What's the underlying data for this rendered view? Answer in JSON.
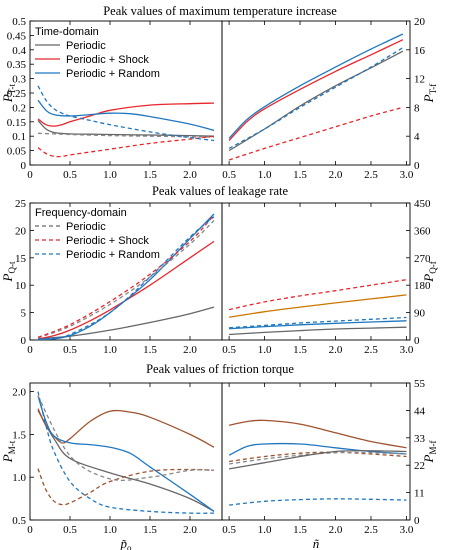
{
  "chart_data": [
    {
      "type": "line",
      "title": "Peak values of maximum temperature increase",
      "legend": {
        "title": "Time-domain",
        "entries": [
          "Periodic",
          "Periodic + Shock",
          "Periodic + Random"
        ],
        "placement": "top-left"
      },
      "left": {
        "ylabel": "P",
        "ysub": "T-t",
        "xlim": [
          0,
          2.4
        ],
        "ylim": [
          0,
          0.5
        ],
        "xticks": [
          "0",
          "0.5",
          "1.0",
          "1.5",
          "2.0"
        ],
        "yticks": [
          "0",
          "0.05",
          "0.1",
          "0.15",
          "0.2",
          "0.25",
          "0.3",
          "0.35",
          "0.4",
          "0.45",
          "0.5"
        ],
        "series": [
          {
            "color": "#666666",
            "dash": false,
            "x": [
              0.1,
              0.2,
              0.3,
              0.5,
              0.75,
              1.0,
              1.5,
              2.0,
              2.3
            ],
            "y": [
              0.155,
              0.125,
              0.113,
              0.108,
              0.107,
              0.106,
              0.104,
              0.102,
              0.1
            ]
          },
          {
            "color": "#e8262c",
            "dash": false,
            "x": [
              0.1,
              0.2,
              0.3,
              0.4,
              0.5,
              0.75,
              1.0,
              1.5,
              2.0,
              2.3
            ],
            "y": [
              0.16,
              0.14,
              0.135,
              0.14,
              0.15,
              0.17,
              0.19,
              0.208,
              0.213,
              0.215
            ]
          },
          {
            "color": "#1f77c0",
            "dash": false,
            "x": [
              0.1,
              0.2,
              0.3,
              0.5,
              0.75,
              1.0,
              1.25,
              1.5,
              2.0,
              2.3
            ],
            "y": [
              0.225,
              0.19,
              0.175,
              0.17,
              0.175,
              0.18,
              0.178,
              0.168,
              0.142,
              0.12
            ]
          },
          {
            "color": "#888888",
            "dash": true,
            "x": [
              0.1,
              0.3,
              0.5,
              1.0,
              1.5,
              2.0,
              2.3
            ],
            "y": [
              0.11,
              0.108,
              0.106,
              0.102,
              0.1,
              0.098,
              0.097
            ]
          },
          {
            "color": "#e8262c",
            "dash": true,
            "x": [
              0.1,
              0.2,
              0.3,
              0.4,
              0.5,
              0.75,
              1.0,
              1.5,
              2.0,
              2.3
            ],
            "y": [
              0.06,
              0.04,
              0.03,
              0.03,
              0.035,
              0.045,
              0.055,
              0.075,
              0.09,
              0.1
            ]
          },
          {
            "color": "#1f77c0",
            "dash": true,
            "x": [
              0.1,
              0.2,
              0.3,
              0.4,
              0.5,
              0.75,
              1.0,
              1.5,
              2.0,
              2.3
            ],
            "y": [
              0.275,
              0.225,
              0.195,
              0.18,
              0.17,
              0.155,
              0.14,
              0.115,
              0.095,
              0.085
            ]
          }
        ]
      },
      "right": {
        "ylabel": "P",
        "ysub": "T-f",
        "xlim": [
          0.4,
          3.05
        ],
        "ylim": [
          0,
          20
        ],
        "xticks": [
          "0.5",
          "1.0",
          "1.5",
          "2.0",
          "2.5",
          "3.0"
        ],
        "yticks": [
          "0",
          "4",
          "8",
          "12",
          "16",
          "20"
        ],
        "series": [
          {
            "color": "#e8262c",
            "dash": false,
            "x": [
              0.5,
              0.75,
              1.0,
              1.5,
              2.0,
              2.5,
              2.95
            ],
            "y": [
              3.4,
              6.0,
              7.8,
              10.5,
              13.0,
              15.3,
              17.4
            ]
          },
          {
            "color": "#1f77c0",
            "dash": false,
            "x": [
              0.5,
              0.75,
              1.0,
              1.5,
              2.0,
              2.5,
              2.95
            ],
            "y": [
              3.7,
              6.3,
              8.1,
              11.0,
              13.6,
              16.1,
              18.2
            ]
          },
          {
            "color": "#666666",
            "dash": false,
            "x": [
              0.5,
              1.0,
              1.5,
              2.0,
              2.5,
              2.95
            ],
            "y": [
              2.0,
              5.0,
              8.2,
              11.0,
              13.5,
              15.8
            ]
          },
          {
            "color": "#1f77c0",
            "dash": true,
            "x": [
              0.5,
              1.0,
              1.5,
              2.0,
              2.5,
              2.95
            ],
            "y": [
              2.3,
              5.0,
              8.0,
              10.8,
              13.6,
              16.3
            ]
          },
          {
            "color": "#e8262c",
            "dash": true,
            "x": [
              0.5,
              1.0,
              1.5,
              2.0,
              2.5,
              2.95
            ],
            "y": [
              0.7,
              2.3,
              3.8,
              5.3,
              6.8,
              8.0
            ]
          }
        ]
      }
    },
    {
      "type": "line",
      "title": "Peak values  of leakage rate",
      "legend": {
        "title": "Frequency-domain",
        "entries": [
          "Periodic",
          "Periodic + Shock",
          "Periodic + Random"
        ],
        "placement": "top-left"
      },
      "left": {
        "ylabel": "P",
        "ysub": "Q-t",
        "xlim": [
          0,
          2.4
        ],
        "ylim": [
          0,
          25
        ],
        "xticks": [
          "0",
          "0.5",
          "1.0",
          "1.5",
          "2.0"
        ],
        "yticks": [
          "0",
          "5",
          "10",
          "15",
          "20",
          "25"
        ],
        "series": [
          {
            "color": "#666666",
            "dash": false,
            "x": [
              0.1,
              0.5,
              1.0,
              1.5,
              2.0,
              2.3
            ],
            "y": [
              0.2,
              0.7,
              1.8,
              3.2,
              4.8,
              6.0
            ]
          },
          {
            "color": "#e8262c",
            "dash": false,
            "x": [
              0.1,
              0.3,
              0.5,
              0.75,
              1.0,
              1.5,
              2.0,
              2.3
            ],
            "y": [
              0.2,
              0.8,
              1.8,
              3.5,
              5.5,
              10.0,
              15.0,
              18.0
            ]
          },
          {
            "color": "#1f77c0",
            "dash": false,
            "x": [
              0.1,
              0.3,
              0.5,
              0.75,
              1.0,
              1.5,
              2.0,
              2.3
            ],
            "y": [
              0.0,
              0.2,
              0.8,
              2.5,
              5.0,
              11.0,
              18.5,
              23.0
            ]
          },
          {
            "color": "#888888",
            "dash": true,
            "x": [
              0.1,
              0.5,
              1.0,
              1.5,
              2.0,
              2.3
            ],
            "y": [
              0.4,
              2.5,
              6.5,
              11.5,
              17.5,
              21.8
            ]
          },
          {
            "color": "#e8262c",
            "dash": true,
            "x": [
              0.1,
              0.5,
              1.0,
              1.5,
              2.0,
              2.3
            ],
            "y": [
              0.5,
              2.8,
              7.0,
              12.0,
              18.0,
              22.8
            ]
          },
          {
            "color": "#1f77c0",
            "dash": true,
            "x": [
              0.1,
              0.3,
              0.5,
              1.0,
              1.5,
              2.0,
              2.3
            ],
            "y": [
              0.2,
              0.4,
              1.0,
              5.0,
              11.5,
              18.8,
              22.5
            ]
          }
        ]
      },
      "right": {
        "ylabel": "P",
        "ysub": "Q-f",
        "xlim": [
          0.4,
          3.05
        ],
        "ylim": [
          0,
          450
        ],
        "xticks": [
          "0.5",
          "1.0",
          "1.5",
          "2.0",
          "2.5",
          "3.0"
        ],
        "yticks": [
          "0",
          "90",
          "180",
          "270",
          "360",
          "450"
        ],
        "series": [
          {
            "color": "#e8262c",
            "dash": true,
            "x": [
              0.5,
              1.0,
              1.5,
              2.0,
              2.5,
              3.0
            ],
            "y": [
              100,
              125,
              145,
              162,
              180,
              198
            ]
          },
          {
            "color": "#cc7700",
            "dash": false,
            "x": [
              0.5,
              1.0,
              1.5,
              2.0,
              2.5,
              3.0
            ],
            "y": [
              75,
              93,
              108,
              122,
              135,
              148
            ]
          },
          {
            "color": "#1f77c0",
            "dash": true,
            "x": [
              0.5,
              1.0,
              1.5,
              2.0,
              2.5,
              3.0
            ],
            "y": [
              40,
              48,
              56,
              62,
              68,
              74
            ]
          },
          {
            "color": "#1f77c0",
            "dash": false,
            "x": [
              0.5,
              1.0,
              1.5,
              2.0,
              2.5,
              3.0
            ],
            "y": [
              37,
              44,
              50,
              55,
              59,
              63
            ]
          },
          {
            "color": "#666666",
            "dash": false,
            "x": [
              0.5,
              1.0,
              1.5,
              2.0,
              2.5,
              3.0
            ],
            "y": [
              18,
              25,
              31,
              36,
              39,
              42
            ]
          }
        ]
      }
    },
    {
      "type": "line",
      "title": "Peak values  of friction torque",
      "left": {
        "ylabel": "P",
        "ysub": "M-t",
        "xlabel": "p̃",
        "xsub": "o",
        "xlim": [
          0,
          2.4
        ],
        "ylim": [
          0.5,
          2.1
        ],
        "xticks": [
          "0",
          "0.5",
          "1.0",
          "1.5",
          "2.0"
        ],
        "yticks": [
          "0.5",
          "1.0",
          "1.5",
          "2.0"
        ],
        "series": [
          {
            "color": "#666666",
            "dash": false,
            "x": [
              0.1,
              0.3,
              0.5,
              1.0,
              1.5,
              2.0,
              2.3
            ],
            "y": [
              1.78,
              1.45,
              1.22,
              1.05,
              0.92,
              0.75,
              0.6
            ]
          },
          {
            "color": "#a0522d",
            "dash": false,
            "x": [
              0.1,
              0.2,
              0.3,
              0.4,
              0.5,
              0.75,
              1.0,
              1.25,
              1.5,
              2.0,
              2.3
            ],
            "y": [
              1.8,
              1.6,
              1.48,
              1.4,
              1.45,
              1.65,
              1.77,
              1.76,
              1.7,
              1.5,
              1.35
            ]
          },
          {
            "color": "#1f77c0",
            "dash": false,
            "x": [
              0.1,
              0.2,
              0.3,
              0.5,
              0.75,
              1.0,
              1.25,
              1.5,
              2.0,
              2.3
            ],
            "y": [
              1.95,
              1.65,
              1.48,
              1.4,
              1.38,
              1.35,
              1.28,
              1.12,
              0.8,
              0.6
            ]
          },
          {
            "color": "#a0522d",
            "dash": true,
            "x": [
              0.1,
              0.2,
              0.3,
              0.4,
              0.5,
              0.75,
              1.0,
              1.5,
              2.0,
              2.3
            ],
            "y": [
              1.1,
              0.85,
              0.72,
              0.68,
              0.7,
              0.82,
              0.95,
              1.07,
              1.09,
              1.08
            ]
          },
          {
            "color": "#888888",
            "dash": true,
            "x": [
              0.1,
              0.5,
              1.0,
              1.5,
              2.0,
              2.3
            ],
            "y": [
              1.95,
              1.25,
              0.98,
              1.0,
              1.08,
              1.08
            ]
          },
          {
            "color": "#1f77c0",
            "dash": true,
            "x": [
              0.1,
              0.2,
              0.3,
              0.5,
              0.75,
              1.0,
              1.5,
              2.0,
              2.3
            ],
            "y": [
              2.0,
              1.6,
              1.3,
              0.95,
              0.75,
              0.65,
              0.6,
              0.58,
              0.58
            ]
          }
        ]
      },
      "right": {
        "ylabel": "P",
        "ysub": "M-f",
        "xlabel": "ñ",
        "xlim": [
          0.4,
          3.05
        ],
        "ylim": [
          0,
          55
        ],
        "xticks": [
          "0.5",
          "1.0",
          "1.5",
          "2.0",
          "2.5",
          "3.0"
        ],
        "yticks": [
          "0",
          "11",
          "22",
          "33",
          "44",
          "55"
        ],
        "series": [
          {
            "color": "#a0522d",
            "dash": false,
            "x": [
              0.5,
              0.75,
              1.0,
              1.5,
              2.0,
              2.5,
              3.0
            ],
            "y": [
              38,
              39.5,
              40,
              38.5,
              35,
              31.5,
              29
            ]
          },
          {
            "color": "#1f77c0",
            "dash": false,
            "x": [
              0.5,
              0.75,
              1.0,
              1.5,
              2.0,
              2.5,
              3.0
            ],
            "y": [
              26,
              29.5,
              30.5,
              30.5,
              29,
              27.5,
              26.5
            ]
          },
          {
            "color": "#a0522d",
            "dash": true,
            "x": [
              0.5,
              1.0,
              1.5,
              2.0,
              2.5,
              3.0
            ],
            "y": [
              23.5,
              25.5,
              26.8,
              27.2,
              26.5,
              25.5
            ]
          },
          {
            "color": "#888888",
            "dash": true,
            "x": [
              0.5,
              1.0,
              1.5,
              2.0,
              2.5,
              3.0
            ],
            "y": [
              22.5,
              24.5,
              26,
              27,
              27,
              26.5
            ]
          },
          {
            "color": "#666666",
            "dash": false,
            "x": [
              0.5,
              1.0,
              1.5,
              2.0,
              2.5,
              3.0
            ],
            "y": [
              20.5,
              23,
              25.5,
              27.5,
              27.8,
              27.5
            ]
          },
          {
            "color": "#1f77c0",
            "dash": true,
            "x": [
              0.5,
              1.0,
              1.5,
              2.0,
              2.5,
              3.0
            ],
            "y": [
              6,
              7.5,
              8.2,
              8.5,
              8.3,
              8.0
            ]
          }
        ]
      }
    }
  ]
}
